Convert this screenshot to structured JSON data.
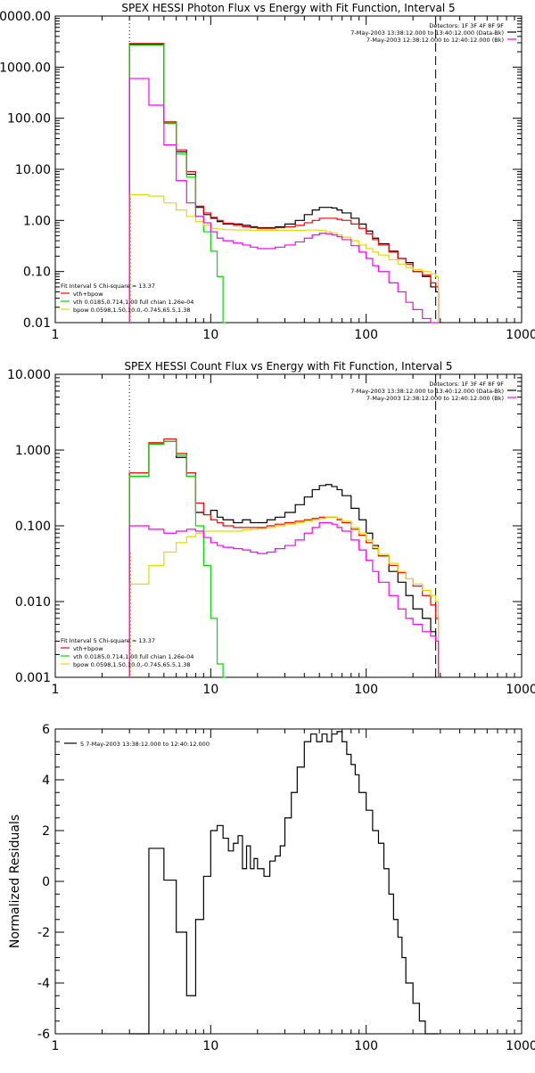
{
  "colors": {
    "axis": "#000000",
    "data": "#000000",
    "sum": "#ff0000",
    "vth": "#00dd00",
    "bpow": "#dddd00",
    "background": "#ff00ff",
    "orange": "#ff8800"
  },
  "chart_data": [
    {
      "type": "line",
      "scale": "log-log",
      "title": "SPEX HESSI Photon Flux vs Energy with Fit Function, Interval 5",
      "xlim": [
        1,
        1000
      ],
      "ylim": [
        0.01,
        10000
      ],
      "x_tick_labels": [
        "1",
        "10",
        "100",
        "1000"
      ],
      "y_tick_labels": [
        "0.01",
        "0.10",
        "1.00",
        "10.00",
        "100.00",
        "1000.00",
        "10000.00"
      ],
      "legend_top_right": [
        "Detectors: 1F 3F 4F 8F 9F",
        "7-May-2003 13:38:12.000 to 13:40:12.000 (Data-Bk)",
        "7-May-2003 12:38:12.000 to 12:40:12.000 (Bk)"
      ],
      "legend_bottom_left": [
        "Fit Interval 5   Chi-square = 13.37",
        "vth+bpow",
        "vth 0.0185,0.714,1.00  full chian 1.26e-04",
        "bpow 0.0598,1.50,10.0,-0.745,65.5,1.38"
      ],
      "vlines": [
        3.0,
        280
      ],
      "series": [
        {
          "name": "7-May-2003 13:38:12.000 to 13:40:12.000 (Data-Bk)",
          "x": [
            3,
            4,
            5,
            6,
            7,
            8,
            9,
            10,
            11,
            12,
            14,
            16,
            18,
            20,
            23,
            26,
            30,
            35,
            40,
            45,
            50,
            55,
            60,
            65,
            70,
            80,
            90,
            100,
            110,
            120,
            140,
            160,
            180,
            200,
            230,
            260,
            280
          ],
          "y": [
            2800,
            2800,
            80,
            22,
            8,
            1.8,
            1.3,
            1.1,
            0.95,
            0.85,
            0.85,
            0.8,
            0.75,
            0.72,
            0.72,
            0.75,
            0.85,
            1.0,
            1.3,
            1.6,
            1.8,
            1.8,
            1.75,
            1.6,
            1.4,
            1.1,
            0.85,
            0.62,
            0.45,
            0.35,
            0.25,
            0.18,
            0.15,
            0.1,
            0.08,
            0.05,
            0.04
          ]
        },
        {
          "name": "vth+bpow",
          "x": [
            3,
            4,
            5,
            6,
            7,
            8,
            9,
            10,
            11,
            12,
            14,
            16,
            18,
            20,
            23,
            26,
            30,
            35,
            40,
            45,
            50,
            55,
            60,
            65,
            70,
            80,
            90,
            100,
            110,
            120,
            140,
            160,
            180,
            200,
            230,
            260,
            280
          ],
          "y": [
            2900,
            2900,
            85,
            24,
            9,
            1.9,
            1.4,
            1.15,
            1.0,
            0.88,
            0.8,
            0.75,
            0.72,
            0.7,
            0.7,
            0.72,
            0.75,
            0.8,
            0.9,
            1.0,
            1.1,
            1.1,
            1.1,
            1.05,
            1.0,
            0.85,
            0.7,
            0.55,
            0.42,
            0.33,
            0.24,
            0.18,
            0.14,
            0.1,
            0.085,
            0.06,
            0.05
          ]
        },
        {
          "name": "vth 0.0185,0.714,1.00  full chian 1.26e-04",
          "x": [
            3,
            4,
            5,
            6,
            7,
            8,
            9,
            10,
            11,
            12
          ],
          "y": [
            2700,
            2700,
            80,
            20,
            7,
            1.2,
            0.6,
            0.25,
            0.08,
            0.01
          ]
        },
        {
          "name": "bpow 0.0598,1.50,10.0,-0.745,65.5,1.38",
          "x": [
            3,
            4,
            5,
            6,
            7,
            8,
            9,
            10,
            11,
            12,
            14,
            16,
            18,
            20,
            23,
            26,
            30,
            35,
            40,
            45,
            50,
            55,
            60,
            65,
            70,
            80,
            90,
            100,
            110,
            120,
            140,
            160,
            180,
            200,
            230,
            260,
            280
          ],
          "y": [
            3.2,
            3.0,
            2.2,
            1.6,
            1.2,
            0.95,
            0.8,
            0.7,
            0.68,
            0.66,
            0.65,
            0.65,
            0.64,
            0.64,
            0.64,
            0.64,
            0.64,
            0.64,
            0.65,
            0.65,
            0.64,
            0.6,
            0.57,
            0.52,
            0.47,
            0.4,
            0.33,
            0.28,
            0.24,
            0.21,
            0.17,
            0.14,
            0.12,
            0.11,
            0.1,
            0.09,
            0.08
          ]
        },
        {
          "name": "7-May-2003 12:38:12.000 to 12:40:12.000 (Bk)",
          "x": [
            3,
            4,
            5,
            6,
            7,
            8,
            9,
            10,
            11,
            12,
            14,
            16,
            18,
            20,
            23,
            26,
            30,
            35,
            40,
            45,
            50,
            55,
            60,
            65,
            70,
            80,
            90,
            100,
            110,
            120,
            140,
            160,
            180,
            200,
            230,
            260,
            280
          ],
          "y": [
            600,
            180,
            30,
            6,
            2.2,
            1.2,
            0.9,
            0.6,
            0.45,
            0.4,
            0.36,
            0.33,
            0.3,
            0.28,
            0.28,
            0.3,
            0.33,
            0.38,
            0.45,
            0.52,
            0.56,
            0.55,
            0.52,
            0.48,
            0.42,
            0.32,
            0.24,
            0.18,
            0.13,
            0.1,
            0.06,
            0.04,
            0.025,
            0.018,
            0.012,
            0.01,
            0.01
          ]
        }
      ]
    },
    {
      "type": "line",
      "scale": "log-log",
      "title": "SPEX HESSI Count Flux vs Energy with Fit Function, Interval 5",
      "xlim": [
        1,
        1000
      ],
      "ylim": [
        0.001,
        10
      ],
      "x_tick_labels": [
        "1",
        "10",
        "100",
        "1000"
      ],
      "y_tick_labels": [
        "0.001",
        "0.010",
        "0.100",
        "1.000",
        "10.000"
      ],
      "legend_top_right": [
        "Detectors: 1F 3F 4F 8F 9F",
        "7-May-2003 13:38:12.000 to 13:40:12.000 (Data-Bk)",
        "7-May-2003 12:38:12.000 to 12:40:12.000 (Bk)"
      ],
      "legend_bottom_left": [
        "Fit Interval 5   Chi-square = 13.37",
        "vth+bpow",
        "vth 0.0185,0.714,1.00  full chian 1.26e-04",
        "bpow 0.0598,1.50,10.0,-0.745,65.5,1.38"
      ],
      "vlines": [
        3.0,
        280
      ],
      "series": [
        {
          "name": "7-May-2003 13:38:12.000 to 13:40:12.000 (Data-Bk)",
          "x": [
            3,
            4,
            5,
            6,
            7,
            8,
            9,
            10,
            11,
            12,
            14,
            16,
            18,
            20,
            23,
            26,
            30,
            35,
            40,
            45,
            50,
            55,
            60,
            65,
            70,
            80,
            90,
            100,
            110,
            120,
            140,
            160,
            180,
            200,
            230,
            260,
            280
          ],
          "y": [
            0.45,
            1.2,
            1.3,
            0.8,
            0.45,
            0.15,
            0.14,
            0.16,
            0.13,
            0.12,
            0.11,
            0.12,
            0.11,
            0.11,
            0.12,
            0.13,
            0.15,
            0.19,
            0.24,
            0.3,
            0.34,
            0.35,
            0.33,
            0.3,
            0.25,
            0.17,
            0.12,
            0.08,
            0.055,
            0.04,
            0.025,
            0.018,
            0.012,
            0.008,
            0.006,
            0.004,
            0.003
          ]
        },
        {
          "name": "vth+bpow",
          "x": [
            3,
            4,
            5,
            6,
            7,
            8,
            9,
            10,
            11,
            12,
            14,
            16,
            18,
            20,
            23,
            26,
            30,
            35,
            40,
            45,
            50,
            55,
            60,
            65,
            70,
            80,
            90,
            100,
            110,
            120,
            140,
            160,
            180,
            200,
            230,
            260,
            280
          ],
          "y": [
            0.5,
            1.25,
            1.4,
            0.9,
            0.5,
            0.2,
            0.14,
            0.12,
            0.11,
            0.1,
            0.095,
            0.095,
            0.095,
            0.095,
            0.1,
            0.105,
            0.11,
            0.115,
            0.12,
            0.125,
            0.13,
            0.13,
            0.13,
            0.12,
            0.11,
            0.09,
            0.075,
            0.06,
            0.05,
            0.04,
            0.03,
            0.024,
            0.02,
            0.016,
            0.012,
            0.009,
            0.006
          ]
        },
        {
          "name": "vth 0.0185,0.714,1.00  full chian 1.26e-04",
          "x": [
            3,
            4,
            5,
            6,
            7,
            8,
            9,
            10,
            11,
            12
          ],
          "y": [
            0.45,
            1.2,
            1.3,
            0.85,
            0.45,
            0.1,
            0.03,
            0.006,
            0.0015,
            0.001
          ]
        },
        {
          "name": "bpow 0.0598,1.50,10.0,-0.745,65.5,1.38",
          "x": [
            3,
            4,
            5,
            6,
            7,
            8,
            9,
            10,
            11,
            12,
            14,
            16,
            18,
            20,
            23,
            26,
            30,
            35,
            40,
            45,
            50,
            55,
            60,
            65,
            70,
            80,
            90,
            100,
            110,
            120,
            140,
            160,
            180,
            200,
            230,
            260,
            280
          ],
          "y": [
            0.017,
            0.03,
            0.045,
            0.06,
            0.072,
            0.08,
            0.085,
            0.085,
            0.085,
            0.085,
            0.085,
            0.088,
            0.09,
            0.092,
            0.095,
            0.1,
            0.105,
            0.11,
            0.115,
            0.12,
            0.125,
            0.13,
            0.13,
            0.125,
            0.115,
            0.095,
            0.08,
            0.065,
            0.052,
            0.042,
            0.032,
            0.025,
            0.02,
            0.017,
            0.014,
            0.012,
            0.01
          ]
        },
        {
          "name": "7-May-2003 12:38:12.000 to 12:40:12.000 (Bk)",
          "x": [
            3,
            4,
            5,
            6,
            7,
            8,
            9,
            10,
            11,
            12,
            14,
            16,
            18,
            20,
            23,
            26,
            30,
            35,
            40,
            45,
            50,
            55,
            60,
            65,
            70,
            80,
            90,
            100,
            110,
            120,
            140,
            160,
            180,
            200,
            230,
            260,
            280
          ],
          "y": [
            0.1,
            0.09,
            0.08,
            0.085,
            0.09,
            0.085,
            0.07,
            0.06,
            0.055,
            0.052,
            0.05,
            0.048,
            0.045,
            0.043,
            0.045,
            0.05,
            0.055,
            0.065,
            0.08,
            0.095,
            0.11,
            0.11,
            0.105,
            0.095,
            0.085,
            0.065,
            0.048,
            0.035,
            0.025,
            0.018,
            0.012,
            0.008,
            0.006,
            0.005,
            0.004,
            0.0035,
            0.003
          ]
        }
      ]
    },
    {
      "type": "line",
      "scale": "log-linear",
      "title": "",
      "xlim": [
        1,
        1000
      ],
      "ylim": [
        -6,
        6
      ],
      "ylabel": "Normalized Residuals",
      "x_tick_labels": [
        "1",
        "10",
        "100",
        "1000"
      ],
      "y_tick_labels": [
        "-6",
        "-4",
        "-2",
        "0",
        "2",
        "4",
        "6"
      ],
      "legend_top_left": "5  7-May-2003 13:38:12.000 to 12:40:12.000",
      "series": [
        {
          "name": "5  7-May-2003 13:38:12.000 to 12:40:12.000",
          "x": [
            3,
            4,
            5,
            6,
            7,
            8,
            9,
            10,
            11,
            12,
            13,
            14,
            15,
            16,
            17,
            18,
            19,
            20,
            22,
            24,
            26,
            28,
            30,
            33,
            36,
            40,
            44,
            48,
            52,
            56,
            60,
            65,
            70,
            75,
            80,
            85,
            90,
            100,
            110,
            120,
            130,
            140,
            150,
            160,
            170,
            180,
            200,
            220,
            240,
            260,
            280
          ],
          "y": [
            -6,
            1.3,
            0.05,
            -2.0,
            -4.5,
            -1.5,
            0.2,
            2.0,
            2.2,
            1.7,
            1.2,
            1.5,
            1.8,
            0.5,
            1.4,
            0.5,
            0.9,
            0.5,
            0.2,
            0.8,
            1.0,
            1.4,
            2.5,
            3.5,
            4.5,
            5.5,
            5.8,
            5.5,
            5.8,
            5.5,
            5.8,
            5.9,
            5.5,
            5.0,
            4.6,
            4.2,
            3.5,
            2.8,
            2.0,
            1.5,
            0.5,
            -0.5,
            -1.5,
            -2.2,
            -3.0,
            -4.0,
            -4.8,
            -5.5,
            -6.0,
            -6.0,
            -6.0
          ]
        }
      ]
    }
  ]
}
